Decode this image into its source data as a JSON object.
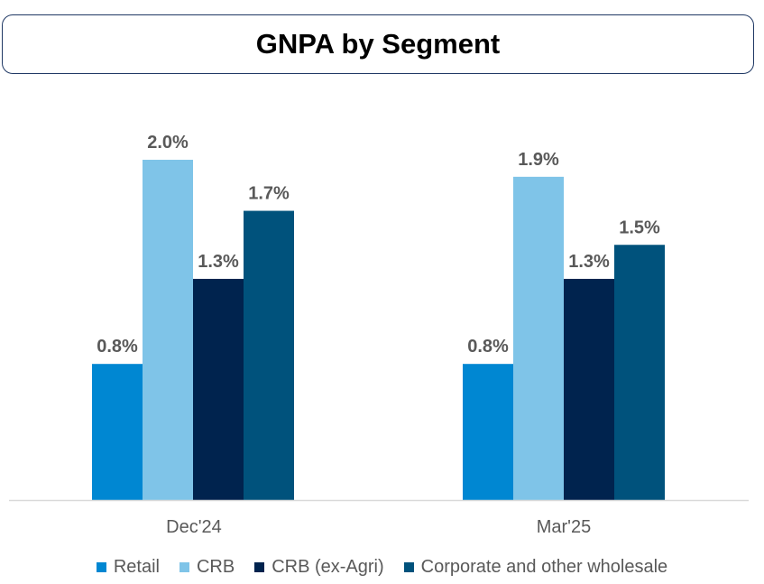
{
  "chart_data": {
    "type": "bar",
    "title": "GNPA by Segment",
    "categories": [
      "Dec'24",
      "Mar'25"
    ],
    "series": [
      {
        "name": "Retail",
        "values": [
          0.8,
          0.8
        ],
        "labels": [
          "0.8%",
          "0.8%"
        ],
        "color": "#0087d2"
      },
      {
        "name": "CRB",
        "values": [
          2.0,
          1.9
        ],
        "labels": [
          "2.0%",
          "1.9%"
        ],
        "color": "#7fc4e8"
      },
      {
        "name": "CRB (ex-Agri)",
        "values": [
          1.3,
          1.3
        ],
        "labels": [
          "1.3%",
          "1.3%"
        ],
        "color": "#00234e"
      },
      {
        "name": "Corporate and other wholesale",
        "values": [
          1.7,
          1.5
        ],
        "labels": [
          "1.7%",
          "1.5%"
        ],
        "color": "#00527c"
      }
    ],
    "ylim": [
      0,
      2.0
    ],
    "grid": false,
    "legend": "bottom"
  }
}
